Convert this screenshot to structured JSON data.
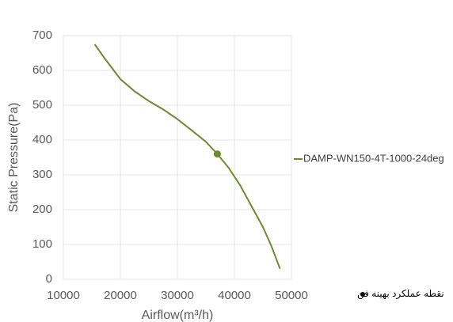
{
  "chart_data": {
    "type": "line",
    "xlabel": "Airflow(m³/h)",
    "ylabel": "Static Pressure(Pa)",
    "series": [
      {
        "name": "DAMP-WN150-4T-1000-24deg",
        "color": "#6d8b2f",
        "x": [
          15500,
          17000,
          20000,
          22500,
          25000,
          27500,
          30000,
          32500,
          35000,
          37000,
          39000,
          41000,
          43000,
          45000,
          46500,
          48000
        ],
        "values": [
          675,
          640,
          575,
          540,
          512,
          488,
          460,
          428,
          395,
          360,
          320,
          270,
          210,
          150,
          95,
          30
        ]
      },
      {
        "name": "نقطه عملکرد بهینه فن",
        "color": "#6d8b2f",
        "marker": "point",
        "x": [
          37000
        ],
        "values": [
          360
        ]
      }
    ],
    "xlim": [
      10000,
      50000
    ],
    "xticks": [
      10000,
      20000,
      30000,
      40000,
      50000
    ],
    "ylim": [
      0,
      700
    ],
    "yticks": [
      0,
      100,
      200,
      300,
      400,
      500,
      600,
      700
    ],
    "grid": true,
    "legend": "right"
  }
}
